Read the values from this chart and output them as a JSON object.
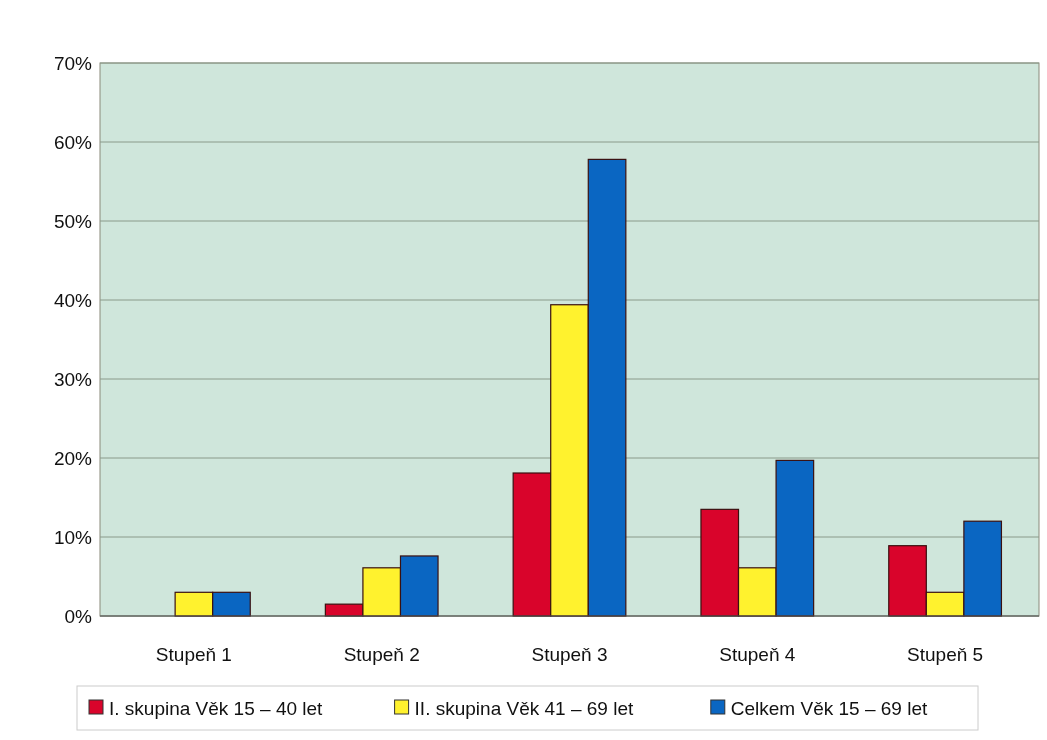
{
  "chart_data": {
    "type": "bar",
    "categories": [
      "Stupeň 1",
      "Stupeň 2",
      "Stupeň 3",
      "Stupeň 4",
      "Stupeň 5"
    ],
    "series": [
      {
        "name": "I. skupina Věk 15 – 40 let",
        "color": "#d9042b",
        "values": [
          0,
          1.5,
          18.1,
          13.5,
          8.9
        ]
      },
      {
        "name": "II. skupina Věk 41 – 69 let",
        "color": "#fff22e",
        "values": [
          3.0,
          6.1,
          39.4,
          6.1,
          3.0
        ]
      },
      {
        "name": "Celkem Věk 15 – 69 let",
        "color": "#0a66c2",
        "values": [
          3.0,
          7.6,
          57.8,
          19.7,
          12.0
        ]
      }
    ],
    "ylim": [
      0,
      70
    ],
    "yticks": [
      {
        "value": 0,
        "label": "0%"
      },
      {
        "value": 10,
        "label": "10%"
      },
      {
        "value": 20,
        "label": "20%"
      },
      {
        "value": 30,
        "label": "30%"
      },
      {
        "value": 40,
        "label": "40%"
      },
      {
        "value": 50,
        "label": "50%"
      },
      {
        "value": 60,
        "label": "60%"
      },
      {
        "value": 70,
        "label": "70%"
      }
    ],
    "grid": "y",
    "legend": "bottom"
  }
}
